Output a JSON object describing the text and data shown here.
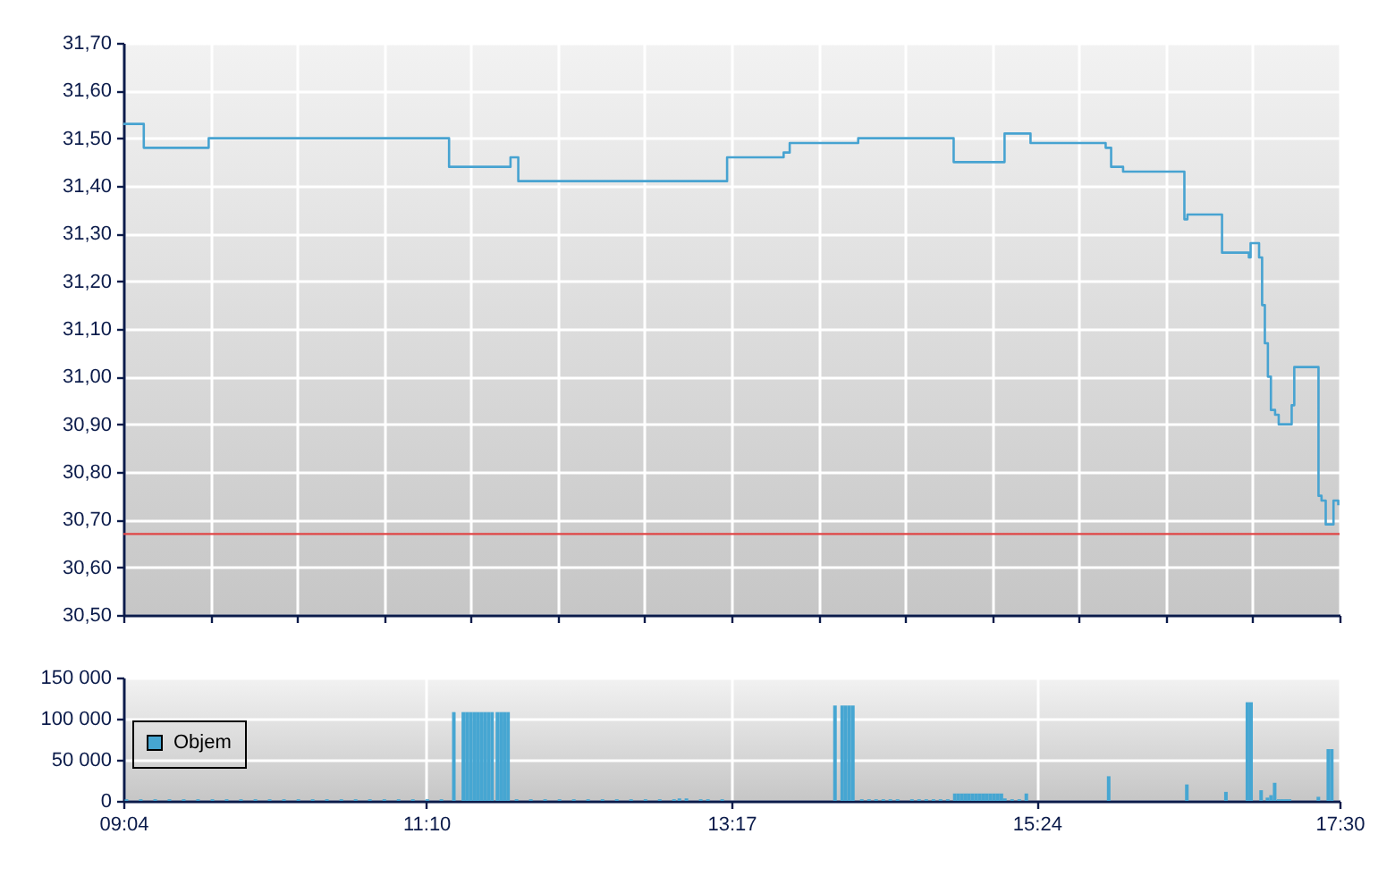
{
  "chart_data": [
    {
      "type": "step",
      "x": [
        9.0667,
        9.208,
        9.658,
        11.325,
        11.751,
        11.805,
        13.253,
        13.645,
        13.687,
        14.162,
        14.824,
        15.177,
        15.357,
        15.878,
        15.916,
        15.999,
        16.424,
        16.445,
        16.685,
        16.871,
        16.883,
        16.942,
        16.963,
        16.982,
        17.003,
        17.024,
        17.053,
        17.078,
        17.168,
        17.186,
        17.354,
        17.375,
        17.404,
        17.458,
        17.491
      ],
      "values": [
        31.53,
        31.48,
        31.5,
        31.44,
        31.46,
        31.41,
        31.46,
        31.47,
        31.49,
        31.5,
        31.45,
        31.51,
        31.49,
        31.48,
        31.44,
        31.43,
        31.33,
        31.34,
        31.26,
        31.25,
        31.28,
        31.25,
        31.15,
        31.07,
        31.0,
        30.93,
        30.92,
        30.9,
        30.94,
        31.02,
        30.75,
        30.74,
        30.69,
        30.74,
        30.73
      ],
      "color": "#47a3d1",
      "xlim": [
        9.0667,
        17.5
      ],
      "xticks": [
        {
          "value": 9.0667,
          "label": null
        },
        {
          "value": 9.669,
          "label": null
        },
        {
          "value": 10.2714,
          "label": null
        },
        {
          "value": 10.8738,
          "label": null
        },
        {
          "value": 11.4762,
          "label": null
        },
        {
          "value": 12.0786,
          "label": null
        },
        {
          "value": 12.681,
          "label": null
        },
        {
          "value": 13.2833,
          "label": null
        },
        {
          "value": 13.8857,
          "label": null
        },
        {
          "value": 14.4881,
          "label": null
        },
        {
          "value": 15.0905,
          "label": null
        },
        {
          "value": 15.6929,
          "label": null
        },
        {
          "value": 16.2952,
          "label": null
        },
        {
          "value": 16.8976,
          "label": null
        },
        {
          "value": 17.5,
          "label": null
        }
      ],
      "ylim": [
        30.5,
        31.7
      ],
      "yticks": [
        {
          "value": 30.5,
          "label": "30,50"
        },
        {
          "value": 30.6,
          "label": "30,60"
        },
        {
          "value": 30.7,
          "label": "30,70"
        },
        {
          "value": 30.8,
          "label": "30,80"
        },
        {
          "value": 30.9,
          "label": "30,90"
        },
        {
          "value": 31.0,
          "label": "31,00"
        },
        {
          "value": 31.1,
          "label": "31,10"
        },
        {
          "value": 31.2,
          "label": "31,20"
        },
        {
          "value": 31.3,
          "label": "31,30"
        },
        {
          "value": 31.4,
          "label": "31,40"
        },
        {
          "value": 31.5,
          "label": "31,50"
        },
        {
          "value": 31.6,
          "label": "31,60"
        },
        {
          "value": 31.7,
          "label": "31,70"
        }
      ],
      "ref_lines": [
        {
          "axis": "y",
          "value": 30.67,
          "color": "#e04545"
        }
      ],
      "grid": true,
      "tick_labels": "y"
    },
    {
      "type": "bar",
      "x": [
        9.088,
        9.187,
        9.287,
        9.386,
        9.485,
        9.584,
        9.684,
        9.783,
        9.882,
        9.982,
        10.081,
        10.18,
        10.28,
        10.379,
        10.478,
        10.578,
        10.677,
        10.776,
        10.876,
        10.975,
        11.074,
        11.174,
        11.272,
        11.358,
        11.424,
        11.449,
        11.474,
        11.499,
        11.523,
        11.548,
        11.573,
        11.598,
        11.623,
        11.66,
        11.685,
        11.709,
        11.734,
        11.793,
        11.892,
        11.991,
        12.091,
        12.19,
        12.289,
        12.389,
        12.488,
        12.587,
        12.687,
        12.786,
        12.885,
        12.922,
        12.971,
        13.07,
        13.12,
        13.219,
        14.001,
        14.051,
        14.075,
        14.1,
        14.125,
        14.187,
        14.237,
        14.286,
        14.336,
        14.385,
        14.435,
        14.535,
        14.584,
        14.634,
        14.684,
        14.733,
        14.783,
        14.832,
        14.857,
        14.882,
        14.907,
        14.931,
        14.956,
        14.981,
        15.006,
        15.031,
        15.055,
        15.08,
        15.105,
        15.13,
        15.155,
        15.179,
        15.229,
        15.279,
        15.328,
        15.899,
        16.441,
        16.712,
        16.861,
        16.886,
        16.956,
        17.0,
        17.025,
        17.05,
        17.078,
        17.103,
        17.128,
        17.153,
        17.353,
        17.422,
        17.446
      ],
      "series": [
        {
          "name": "Objem",
          "color": "#46a6d2",
          "values": [
            2000,
            2000,
            2000,
            2000,
            2000,
            2000,
            2000,
            2000,
            2000,
            2000,
            2000,
            2000,
            2000,
            2000,
            2000,
            2000,
            2000,
            2000,
            2000,
            2000,
            2000,
            2000,
            2000,
            108000,
            108000,
            108000,
            108000,
            108000,
            108000,
            108000,
            108000,
            108000,
            108000,
            108000,
            108000,
            108000,
            108000,
            2000,
            2000,
            2000,
            2000,
            2000,
            2000,
            2000,
            2000,
            2000,
            2000,
            2000,
            2000,
            3000,
            3000,
            2000,
            2000,
            2000,
            116000,
            116000,
            116000,
            116000,
            116000,
            2000,
            2000,
            2000,
            2000,
            2000,
            2000,
            2000,
            2000,
            2000,
            2000,
            2000,
            2000,
            9000,
            9000,
            9000,
            9000,
            9000,
            9000,
            9000,
            9000,
            9000,
            9000,
            9000,
            9000,
            9000,
            9000,
            3000,
            2000,
            2000,
            9000,
            30000,
            20000,
            11000,
            120000,
            120000,
            13000,
            4000,
            7000,
            22000,
            2000,
            2000,
            2000,
            2000,
            5000,
            63000,
            63000
          ]
        }
      ],
      "xlim": [
        9.0667,
        17.5
      ],
      "xticks": [
        {
          "value": 9.0667,
          "label": "09:04"
        },
        {
          "value": 11.1667,
          "label": "11:10"
        },
        {
          "value": 13.2833,
          "label": "13:17"
        },
        {
          "value": 15.4,
          "label": "15:24"
        },
        {
          "value": 17.5,
          "label": "17:30"
        }
      ],
      "ylim": [
        0,
        150000
      ],
      "yticks": [
        0,
        {
          "value": 50000,
          "label": "50 000"
        },
        {
          "value": 100000,
          "label": "100 000"
        },
        {
          "value": 150000,
          "label": "150 000"
        }
      ],
      "grid": true,
      "legend": "left"
    }
  ]
}
